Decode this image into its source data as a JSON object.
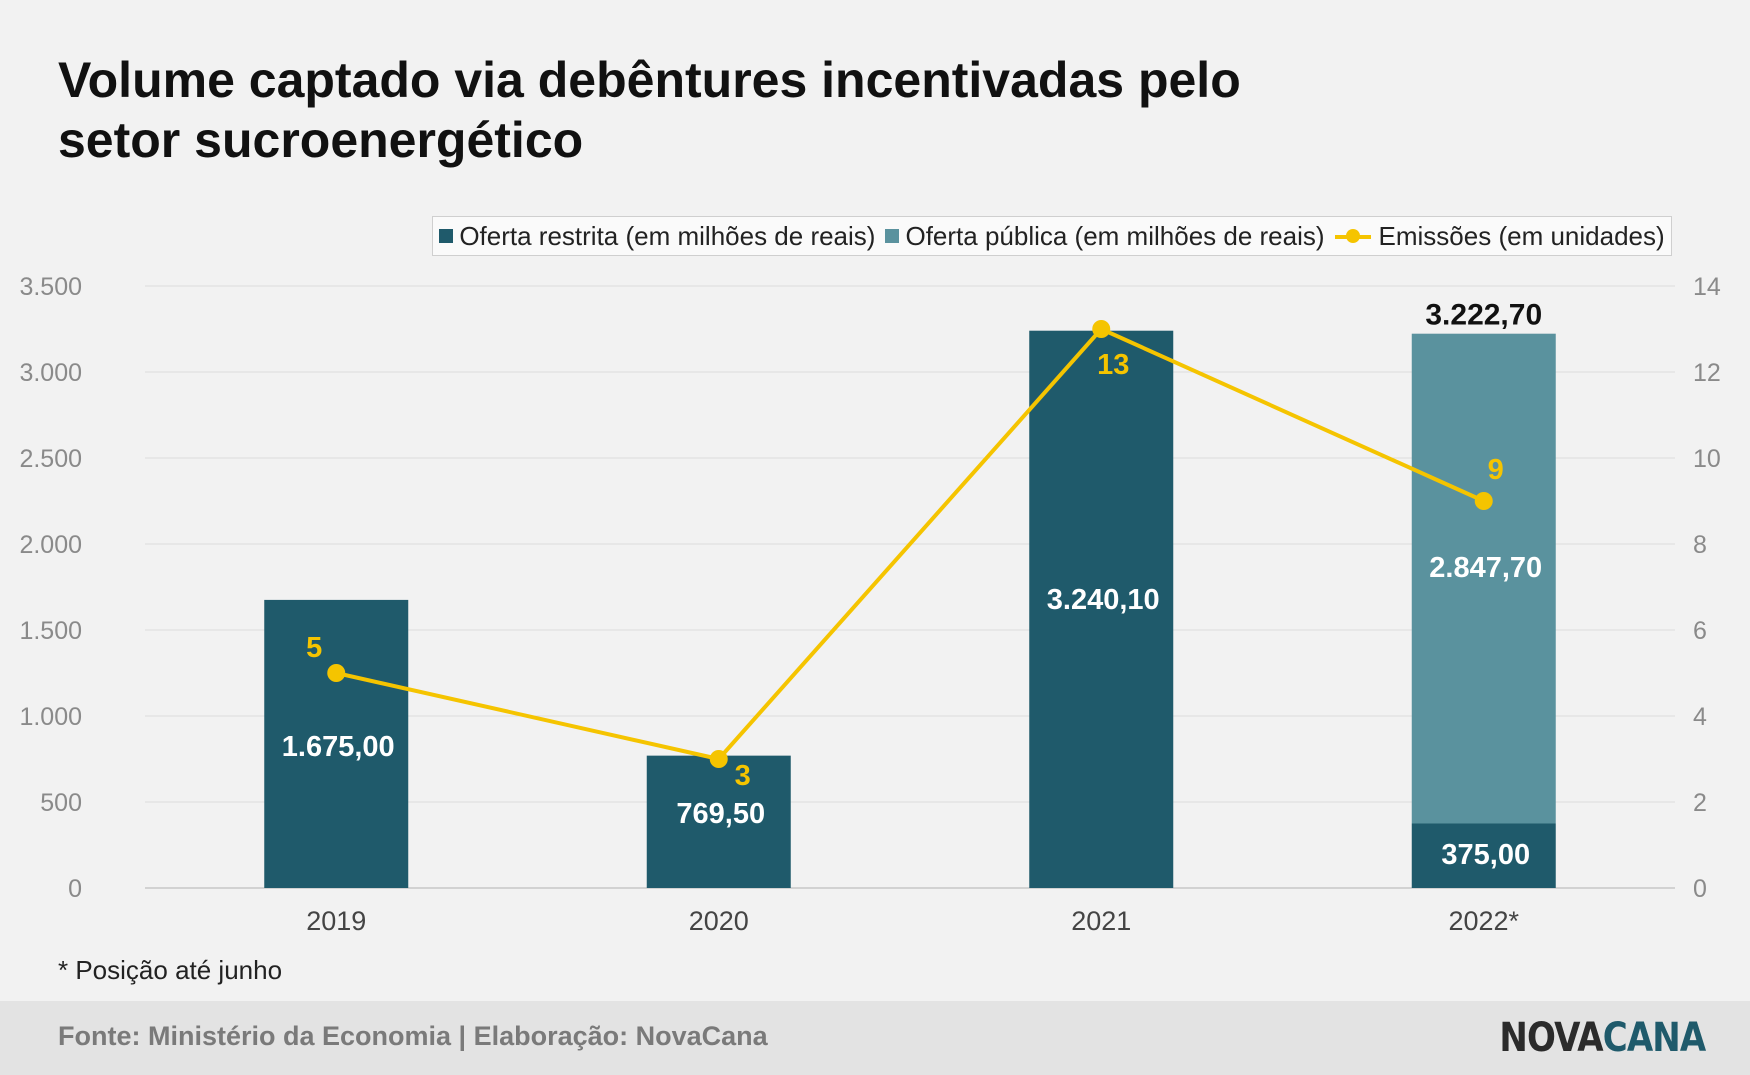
{
  "title_line1": "Volume captado via debêntures incentivadas pelo",
  "title_line2": "setor sucroenergético",
  "legend": {
    "restrita": "Oferta restrita (em milhões de reais)",
    "publica": "Oferta pública (em milhões de reais)",
    "emissoes": "Emissões  (em unidades)"
  },
  "note": "* Posição até junho",
  "source": "Fonte: Ministério da Economia | Elaboração: NovaCana",
  "brand": {
    "part1": "NOVA",
    "part2": "CANA"
  },
  "colors": {
    "restrita": "#1f5a6b",
    "publica": "#5a929e",
    "emissoes": "#f5c400",
    "axis_text": "#8a8a8a",
    "grid": "#dcdcdc"
  },
  "chart_data": {
    "type": "bar",
    "stacked": true,
    "categories": [
      "2019",
      "2020",
      "2021",
      "2022*"
    ],
    "series": [
      {
        "name": "Oferta restrita (em milhões de reais)",
        "values": [
          1675.0,
          769.5,
          3240.1,
          375.0
        ],
        "labels": [
          "1.675,00",
          "769,50",
          "3.240,10",
          "375,00"
        ]
      },
      {
        "name": "Oferta pública (em milhões de reais)",
        "values": [
          0,
          0,
          0,
          2847.7
        ],
        "labels": [
          "",
          "",
          "",
          "2.847,70"
        ]
      }
    ],
    "line_series": {
      "name": "Emissões  (em unidades)",
      "values": [
        5,
        3,
        13,
        9
      ],
      "labels": [
        "5",
        "3",
        "13",
        "9"
      ],
      "axis": "right"
    },
    "totals": [
      "",
      "",
      "",
      "3.222,70"
    ],
    "y_left": {
      "ylim": [
        0,
        3500
      ],
      "ticks": [
        0,
        500,
        1000,
        1500,
        2000,
        2500,
        3000,
        3500
      ],
      "tick_labels": [
        "0",
        "500",
        "1.000",
        "1.500",
        "2.000",
        "2.500",
        "3.000",
        "3.500"
      ]
    },
    "y_right": {
      "ylim": [
        0,
        14
      ],
      "ticks": [
        0,
        2,
        4,
        6,
        8,
        10,
        12,
        14
      ],
      "tick_labels": [
        "0",
        "2",
        "4",
        "6",
        "8",
        "10",
        "12",
        "14"
      ]
    },
    "grid": true,
    "legend_position": "top"
  }
}
